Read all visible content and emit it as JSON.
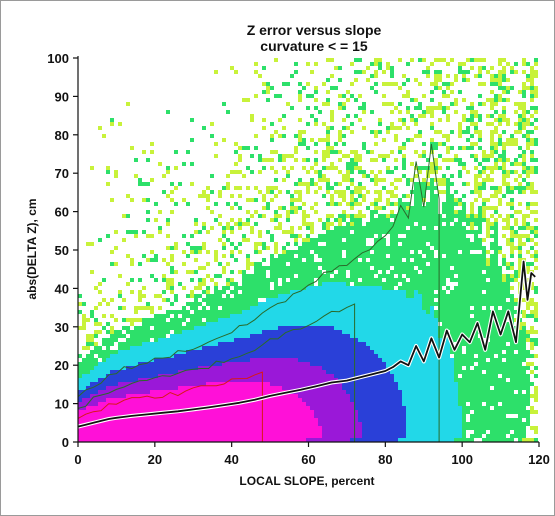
{
  "chart_data": {
    "type": "heatmap",
    "title": "Z error versus slope",
    "subtitle": "curvature < = 15",
    "xlabel": "LOCAL SLOPE, percent",
    "ylabel": "abs(DELTA Z), cm",
    "xlim": [
      0,
      120
    ],
    "ylim": [
      0,
      100
    ],
    "xticks": [
      "0",
      "20",
      "40",
      "60",
      "80",
      "100",
      "120"
    ],
    "yticks": [
      "0",
      "10",
      "20",
      "30",
      "40",
      "50",
      "60",
      "70",
      "80",
      "90",
      "100"
    ],
    "grid": false,
    "legend": "none",
    "colors": {
      "sparse": "#c8f23a",
      "low": "#2de06a",
      "medium": "#22d8e8",
      "high": "#2a40d8",
      "very_high": "#9a18d8",
      "peak": "#ff10d8",
      "contour_low": "#2a6a2a",
      "contour_high": "#d81818",
      "median_line": "#111111"
    },
    "series": [
      {
        "type": "line",
        "x": [
          0,
          2,
          4,
          6,
          8,
          10,
          14,
          18,
          22,
          26,
          30,
          34,
          38,
          42,
          46,
          50,
          54,
          58,
          62,
          66,
          70,
          74,
          78,
          80,
          82,
          84,
          86,
          88,
          90,
          92,
          94,
          96,
          98,
          100,
          102,
          104,
          106,
          108,
          110,
          112,
          114,
          116,
          117,
          118,
          119
        ],
        "values": [
          4,
          4.5,
          5,
          5.5,
          6,
          6.3,
          6.8,
          7.2,
          7.6,
          8,
          8.5,
          9,
          9.6,
          10.2,
          11,
          12,
          12.8,
          13.6,
          14.5,
          15.5,
          16,
          17,
          18,
          18.5,
          19.5,
          21,
          20,
          25,
          21,
          27,
          22,
          29,
          24,
          28,
          26,
          31,
          24,
          34,
          28,
          34,
          26,
          47,
          37,
          44,
          43
        ]
      }
    ]
  }
}
